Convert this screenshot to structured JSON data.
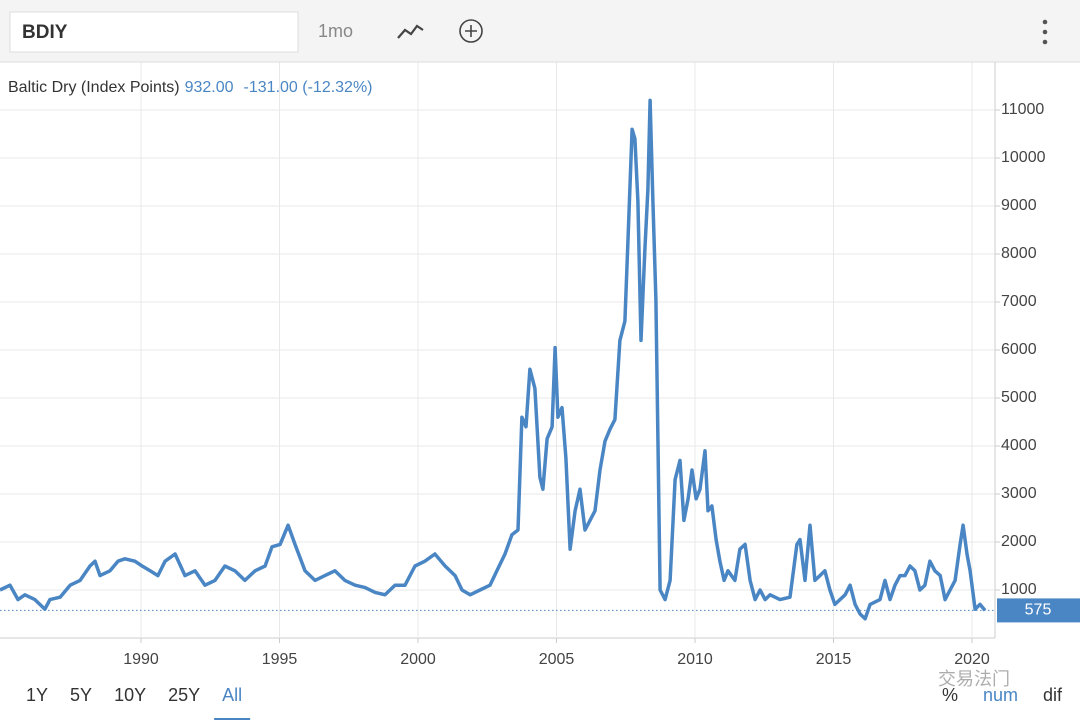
{
  "ui": {
    "symbol": "BDIY",
    "interval": "1mo",
    "ranges": [
      "1Y",
      "5Y",
      "10Y",
      "25Y",
      "All"
    ],
    "active_range": "All",
    "modes": [
      "%",
      "num",
      "dif"
    ],
    "active_mode": "num",
    "watermark": "交易法门"
  },
  "chart_data": {
    "type": "line",
    "title": "Baltic Dry (Index Points)",
    "price": "932.00",
    "change": "-131.00 (-12.32%)",
    "last_value": 575,
    "xlim": [
      1984.91,
      2020.83
    ],
    "ylim": [
      0,
      12000
    ],
    "xticks": [
      1990,
      1995,
      2000,
      2005,
      2010,
      2015,
      2020
    ],
    "yticks": [
      1000,
      2000,
      3000,
      4000,
      5000,
      6000,
      7000,
      8000,
      9000,
      10000,
      11000
    ],
    "grid": true,
    "series": [
      {
        "name": "Baltic Dry",
        "color": "#4a86c4",
        "x": [
          1984.91,
          1985.27,
          1985.56,
          1985.81,
          1986.17,
          1986.53,
          1986.71,
          1987.08,
          1987.44,
          1987.8,
          1988.16,
          1988.34,
          1988.52,
          1988.88,
          1989.17,
          1989.42,
          1989.78,
          1990.04,
          1990.33,
          1990.61,
          1990.87,
          1991.23,
          1991.59,
          1991.95,
          1992.31,
          1992.67,
          1993.03,
          1993.39,
          1993.75,
          1994.12,
          1994.48,
          1994.73,
          1995.02,
          1995.31,
          1995.56,
          1995.92,
          1996.28,
          1996.64,
          1997.0,
          1997.36,
          1997.73,
          1998.09,
          1998.45,
          1998.81,
          1999.17,
          1999.53,
          1999.89,
          2000.25,
          2000.61,
          2000.98,
          2001.34,
          2001.59,
          2001.88,
          2002.24,
          2002.6,
          2002.85,
          2003.14,
          2003.39,
          2003.61,
          2003.75,
          2003.9,
          2004.04,
          2004.22,
          2004.4,
          2004.51,
          2004.66,
          2004.84,
          2004.95,
          2005.05,
          2005.2,
          2005.34,
          2005.49,
          2005.67,
          2005.85,
          2006.03,
          2006.21,
          2006.39,
          2006.57,
          2006.75,
          2006.93,
          2007.11,
          2007.29,
          2007.47,
          2007.58,
          2007.73,
          2007.83,
          2007.94,
          2008.05,
          2008.19,
          2008.3,
          2008.38,
          2008.48,
          2008.59,
          2008.74,
          2008.92,
          2009.1,
          2009.28,
          2009.46,
          2009.6,
          2009.75,
          2009.89,
          2010.04,
          2010.18,
          2010.36,
          2010.47,
          2010.61,
          2010.76,
          2010.9,
          2011.05,
          2011.19,
          2011.44,
          2011.62,
          2011.81,
          2011.99,
          2012.17,
          2012.35,
          2012.53,
          2012.71,
          2013.07,
          2013.43,
          2013.68,
          2013.79,
          2013.97,
          2014.15,
          2014.33,
          2014.51,
          2014.69,
          2014.87,
          2015.05,
          2015.42,
          2015.6,
          2015.78,
          2015.96,
          2016.14,
          2016.32,
          2016.68,
          2016.86,
          2017.04,
          2017.22,
          2017.4,
          2017.58,
          2017.76,
          2017.94,
          2018.12,
          2018.3,
          2018.48,
          2018.66,
          2018.85,
          2019.03,
          2019.21,
          2019.39,
          2019.57,
          2019.68,
          2019.82,
          2019.93,
          2020.11,
          2020.29,
          2020.47
        ],
        "values": [
          1000,
          1100,
          800,
          900,
          800,
          600,
          800,
          850,
          1100,
          1200,
          1500,
          1600,
          1300,
          1400,
          1600,
          1650,
          1600,
          1500,
          1400,
          1300,
          1600,
          1750,
          1300,
          1400,
          1100,
          1200,
          1500,
          1400,
          1200,
          1400,
          1500,
          1900,
          1950,
          2350,
          1950,
          1400,
          1200,
          1300,
          1400,
          1200,
          1100,
          1050,
          950,
          900,
          1100,
          1100,
          1500,
          1600,
          1750,
          1500,
          1300,
          1000,
          900,
          1000,
          1100,
          1400,
          1750,
          2150,
          2250,
          4600,
          4400,
          5600,
          5200,
          3350,
          3100,
          4150,
          4400,
          6050,
          4600,
          4800,
          3750,
          1850,
          2650,
          3100,
          2250,
          2450,
          2650,
          3500,
          4100,
          4350,
          4550,
          6200,
          6600,
          8300,
          10600,
          10400,
          9100,
          6200,
          8100,
          9350,
          11200,
          9100,
          7050,
          1000,
          800,
          1200,
          3300,
          3700,
          2450,
          2900,
          3500,
          2900,
          3100,
          3900,
          2650,
          2750,
          2050,
          1600,
          1200,
          1400,
          1200,
          1850,
          1950,
          1200,
          800,
          1000,
          800,
          900,
          800,
          850,
          1950,
          2050,
          1200,
          2350,
          1200,
          1300,
          1400,
          1000,
          700,
          900,
          1100,
          700,
          500,
          400,
          700,
          800,
          1200,
          800,
          1100,
          1300,
          1300,
          1500,
          1400,
          1000,
          1100,
          1600,
          1400,
          1300,
          800,
          1000,
          1200,
          1950,
          2350,
          1750,
          1400,
          600,
          700,
          575
        ]
      }
    ]
  }
}
